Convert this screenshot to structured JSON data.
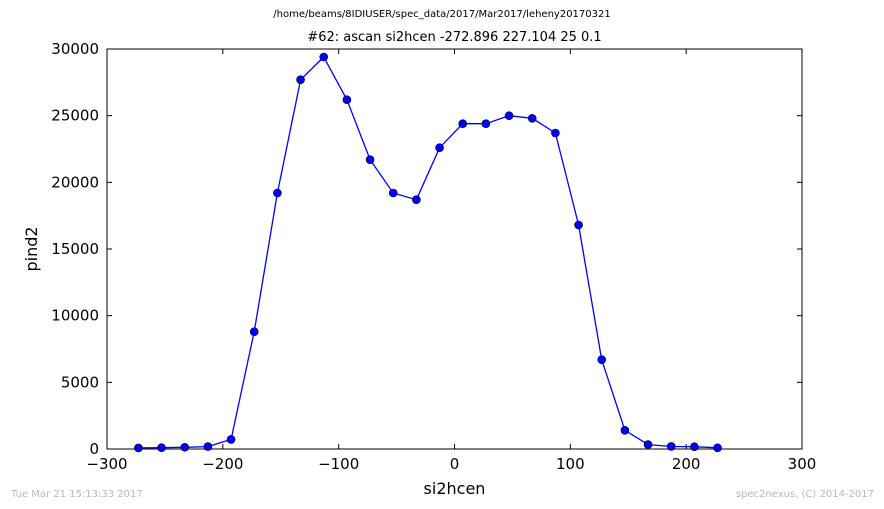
{
  "header": {
    "suptitle": "/home/beams/8IDIUSER/spec_data/2017/Mar2017/leheny20170321"
  },
  "footer": {
    "timestamp": "Tue Mar 21 15:13:33 2017",
    "credit": "spec2nexus, (C) 2014-2017"
  },
  "chart_data": {
    "type": "line",
    "title": "#62: ascan  si2hcen -272.896 227.104  25 0.1",
    "xlabel": "si2hcen",
    "ylabel": "pind2",
    "xlim": [
      -300,
      300
    ],
    "ylim": [
      0,
      30000
    ],
    "xticks": [
      -300,
      -200,
      -100,
      0,
      100,
      200,
      300
    ],
    "yticks": [
      0,
      5000,
      10000,
      15000,
      20000,
      25000,
      30000
    ],
    "xtick_labels": [
      "−300",
      "−200",
      "−100",
      "0",
      "100",
      "200",
      "300"
    ],
    "ytick_labels": [
      "0",
      "5000",
      "10000",
      "15000",
      "20000",
      "25000",
      "30000"
    ],
    "grid": false,
    "color": "#0000ff",
    "marker": "circle",
    "series": [
      {
        "x": [
          -272.896,
          -252.896,
          -232.896,
          -212.896,
          -192.896,
          -172.896,
          -152.896,
          -132.896,
          -112.896,
          -92.896,
          -72.896,
          -52.896,
          -32.896,
          -12.896,
          7.104,
          27.104,
          47.104,
          67.104,
          87.104,
          107.104,
          127.104,
          147.104,
          167.104,
          187.104,
          207.104,
          227.104
        ],
        "y": [
          80,
          100,
          130,
          180,
          720,
          8800,
          19200,
          27700,
          29400,
          26200,
          21700,
          19200,
          18700,
          22600,
          24400,
          24400,
          25000,
          24800,
          23700,
          16800,
          6700,
          1400,
          330,
          190,
          170,
          90
        ]
      }
    ]
  }
}
